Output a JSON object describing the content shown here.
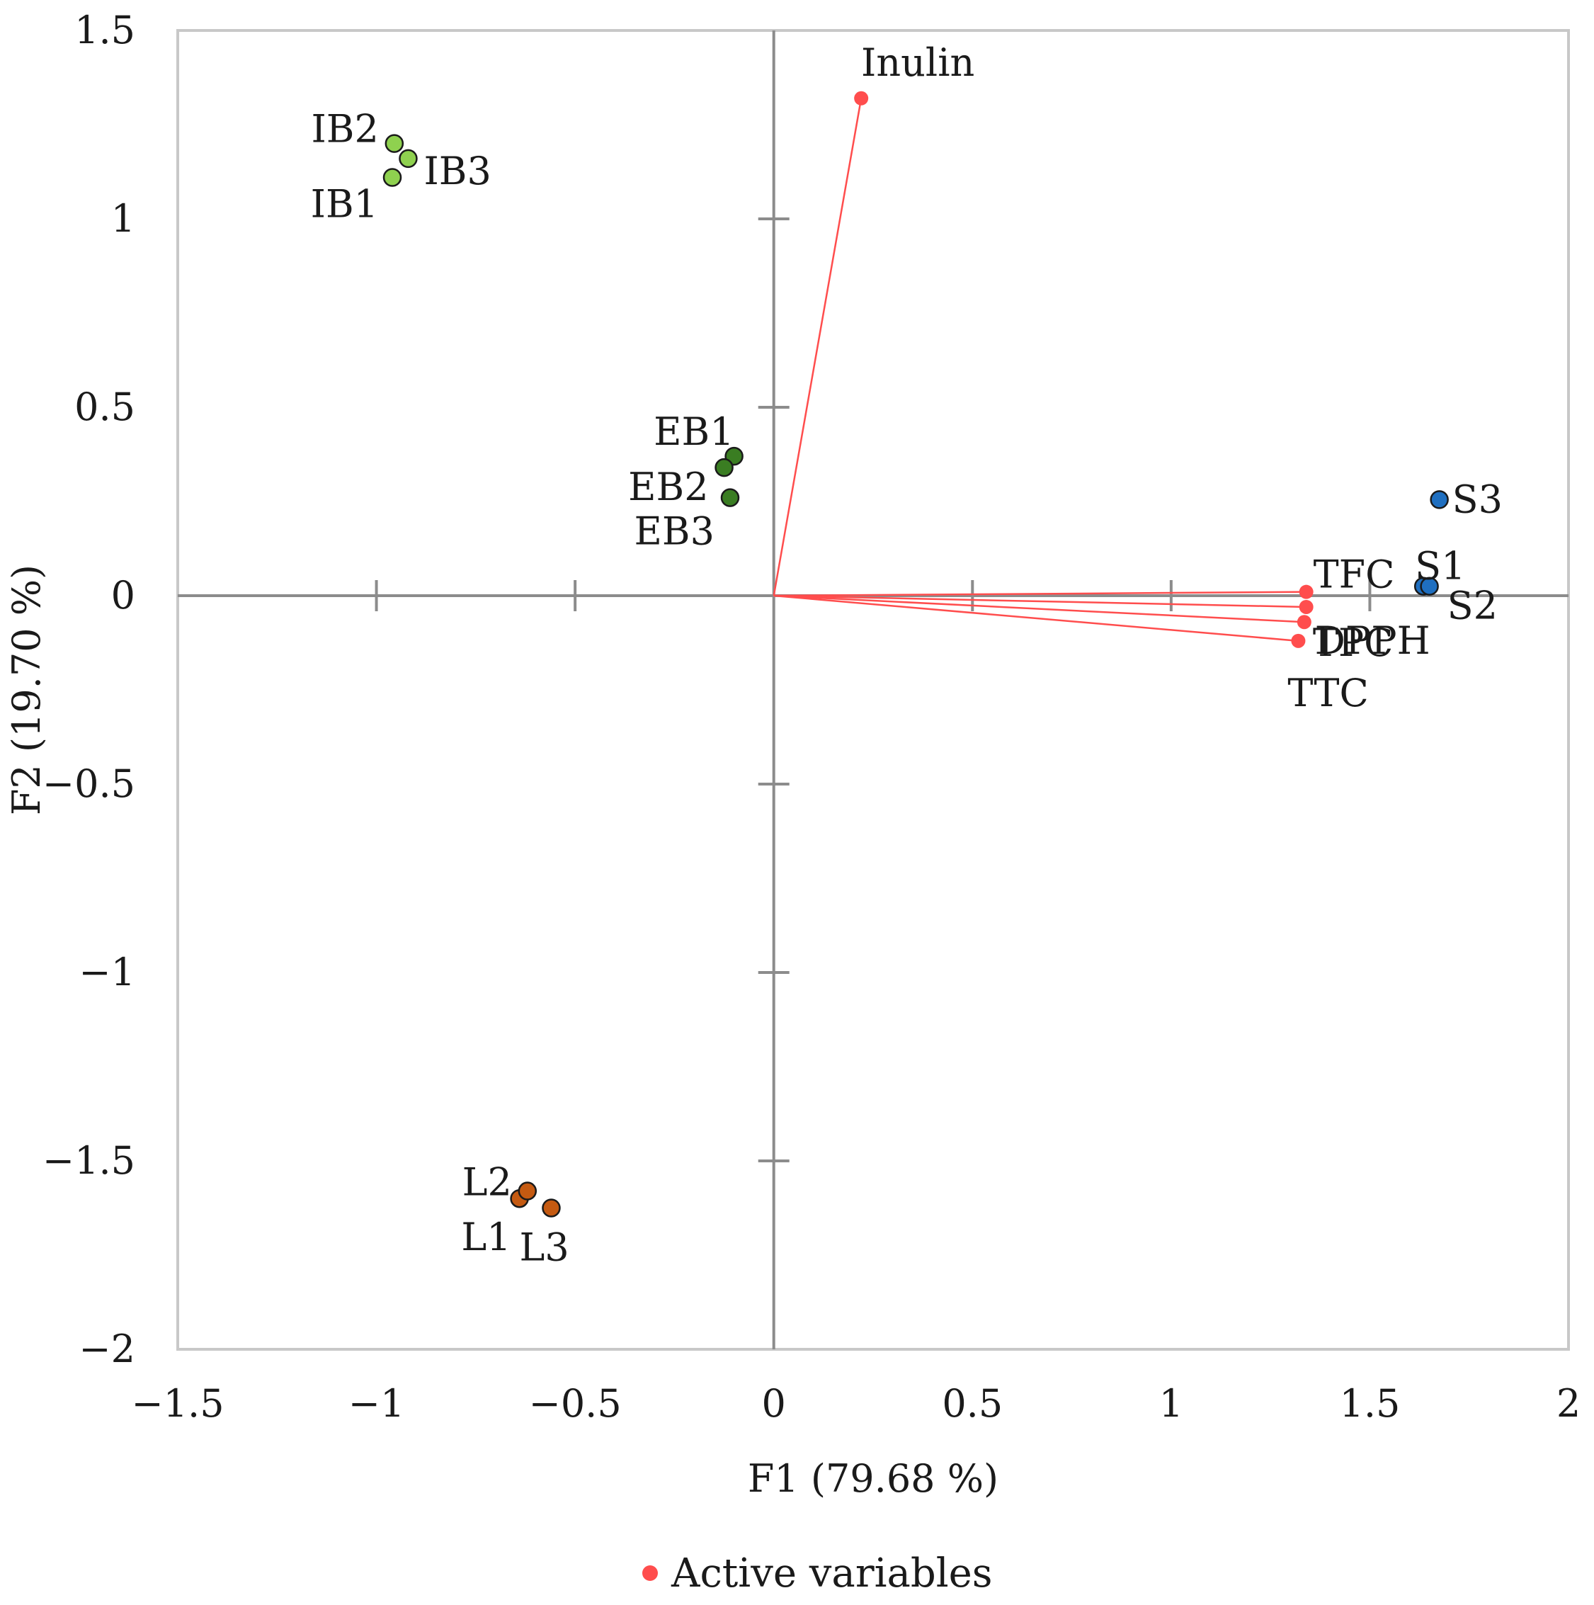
{
  "chart_data": {
    "type": "scatter",
    "title": "",
    "xlabel": "F1 (79.68 %)",
    "ylabel": "F2 (19.70 %)",
    "xlim": [
      -1.5,
      2
    ],
    "ylim": [
      -2,
      1.5
    ],
    "xticks": [
      -1.5,
      -1,
      -0.5,
      0,
      0.5,
      1,
      1.5,
      2
    ],
    "yticks": [
      -2,
      -1.5,
      -1,
      -0.5,
      0,
      0.5,
      1,
      1.5
    ],
    "xtick_labels": [
      "−1.5",
      "−1",
      "−0.5",
      "0",
      "0.5",
      "1",
      "1.5",
      "2"
    ],
    "ytick_labels": [
      "−2",
      "−1.5",
      "−1",
      "−0.5",
      "0",
      "0.5",
      "1",
      "1.5"
    ],
    "grid": false,
    "legend": {
      "position": "bottom-center",
      "entries": [
        {
          "label": "Active variables",
          "color": "#ff4d4d"
        }
      ]
    },
    "series": [
      {
        "name": "Active variables",
        "kind": "vectors",
        "color": "#ff4d4d",
        "points": [
          {
            "label": "Inulin",
            "x": 0.22,
            "y": 1.32
          },
          {
            "label": "TFC",
            "x": 1.34,
            "y": 0.01
          },
          {
            "label": "DPPH",
            "x": 1.34,
            "y": -0.03
          },
          {
            "label": "TPC",
            "x": 1.335,
            "y": -0.07
          },
          {
            "label": "TTC",
            "x": 1.32,
            "y": -0.12
          }
        ]
      },
      {
        "kind": "observations",
        "color": "#8fd14f",
        "points": [
          {
            "label": "IB1",
            "x": -0.96,
            "y": 1.11
          },
          {
            "label": "IB2",
            "x": -0.955,
            "y": 1.2
          },
          {
            "label": "IB3",
            "x": -0.92,
            "y": 1.16
          }
        ]
      },
      {
        "kind": "observations",
        "color": "#3a7d22",
        "points": [
          {
            "label": "EB1",
            "x": -0.1,
            "y": 0.37
          },
          {
            "label": "EB2",
            "x": -0.125,
            "y": 0.34
          },
          {
            "label": "EB3",
            "x": -0.11,
            "y": 0.26
          }
        ]
      },
      {
        "kind": "observations",
        "color": "#1f6fc0",
        "points": [
          {
            "label": "S1",
            "x": 1.635,
            "y": 0.025
          },
          {
            "label": "S2",
            "x": 1.65,
            "y": 0.025
          },
          {
            "label": "S3",
            "x": 1.675,
            "y": 0.255
          }
        ]
      },
      {
        "kind": "observations",
        "color": "#c55a11",
        "points": [
          {
            "label": "L1",
            "x": -0.64,
            "y": -1.6
          },
          {
            "label": "L2",
            "x": -0.62,
            "y": -1.58
          },
          {
            "label": "L3",
            "x": -0.56,
            "y": -1.625
          }
        ]
      }
    ]
  }
}
